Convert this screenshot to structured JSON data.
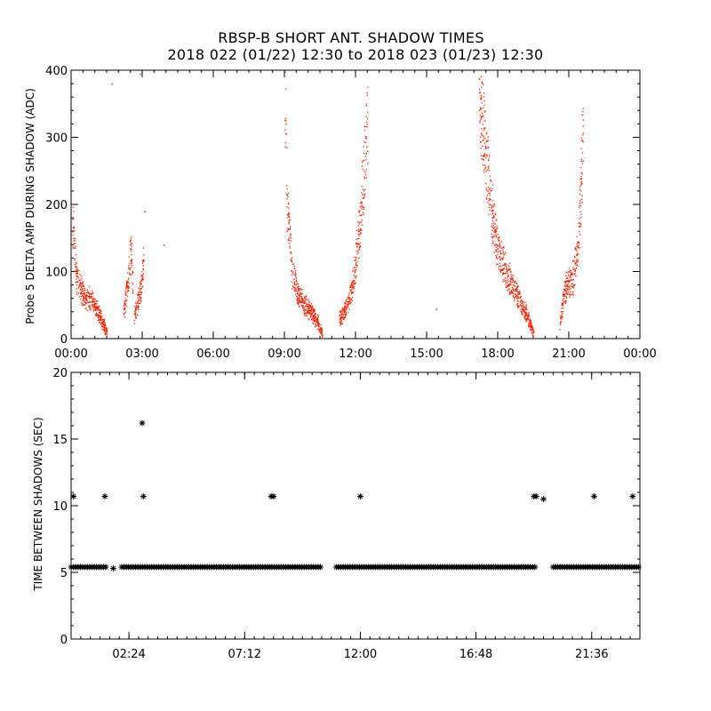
{
  "page": {
    "title_line1": "RBSP-B SHORT ANT. SHADOW TIMES",
    "title_line2": "2018 022 (01/22) 12:30 to 2018 023 (01/23) 12:30"
  },
  "colors": {
    "top_points": "#ff2200",
    "bottom_points": "#000000",
    "axes": "#000000"
  },
  "chart_data": [
    {
      "type": "scatter",
      "ylabel": "Probe 5 DELTA AMP DURING SHADOW (ADC)",
      "xlabel": "",
      "x_unit": "hours",
      "xlim": [
        0,
        24
      ],
      "ylim": [
        0,
        400
      ],
      "x_tick_values": [
        0,
        3,
        6,
        9,
        12,
        15,
        18,
        21,
        24
      ],
      "x_tick_labels": [
        "00:00",
        "03:00",
        "06:00",
        "09:00",
        "12:00",
        "15:00",
        "18:00",
        "21:00",
        "00:00"
      ],
      "y_ticks": [
        0,
        100,
        200,
        300,
        400
      ],
      "grid": false,
      "series": [
        {
          "color": "#ff2200",
          "segments": [
            {
              "x": [
                0.05,
                0.2,
                0.5,
                0.9,
                1.2,
                1.5
              ],
              "y": [
                185,
                95,
                65,
                55,
                35,
                8
              ]
            },
            {
              "x": [
                2.2,
                2.4,
                2.5,
                2.6
              ],
              "y": [
                40,
                90,
                140,
                75
              ]
            },
            {
              "x": [
                2.65,
                2.8,
                2.95,
                3.05
              ],
              "y": [
                35,
                55,
                80,
                120
              ]
            },
            {
              "x": [
                9.0,
                9.1,
                9.3,
                9.6,
                10.0,
                10.4,
                10.6
              ],
              "y": [
                380,
                200,
                100,
                62,
                45,
                25,
                5
              ]
            },
            {
              "x": [
                11.3,
                11.6,
                11.9,
                12.1,
                12.3,
                12.5
              ],
              "y": [
                30,
                45,
                85,
                150,
                230,
                330
              ]
            },
            {
              "x": [
                17.2,
                17.4,
                17.7,
                18.0,
                18.4,
                18.8,
                19.3,
                19.5
              ],
              "y": [
                385,
                300,
                200,
                130,
                95,
                65,
                30,
                5
              ]
            },
            {
              "x": [
                20.6,
                20.8,
                21.0,
                21.2,
                21.4,
                21.6
              ],
              "y": [
                20,
                70,
                85,
                95,
                150,
                320
              ]
            }
          ],
          "outliers": [
            {
              "x": 1.7,
              "y": 380
            },
            {
              "x": 2.9,
              "y": 395
            },
            {
              "x": 3.1,
              "y": 190
            },
            {
              "x": 3.9,
              "y": 140
            },
            {
              "x": 15.4,
              "y": 45
            }
          ]
        }
      ]
    },
    {
      "type": "scatter",
      "ylabel": "TIME BETWEEN SHADOWS (SEC)",
      "xlabel": "",
      "x_unit": "hours",
      "xlim": [
        0,
        23.6
      ],
      "ylim": [
        0,
        20
      ],
      "x_tick_values": [
        2.4,
        7.2,
        12.0,
        16.8,
        21.6
      ],
      "x_tick_labels": [
        "02:24",
        "07:12",
        "12:00",
        "16:48",
        "21:36"
      ],
      "y_ticks": [
        0,
        5,
        10,
        15,
        20
      ],
      "grid": false,
      "series": [
        {
          "color": "#000000",
          "baseline_value": 5.4,
          "baseline_ranges": [
            [
              0,
              1.5
            ],
            [
              2.1,
              10.4
            ],
            [
              11.0,
              19.3
            ],
            [
              20.0,
              23.6
            ]
          ],
          "points": [
            {
              "x": 0.1,
              "y": 10.7
            },
            {
              "x": 1.4,
              "y": 10.7
            },
            {
              "x": 1.75,
              "y": 5.3
            },
            {
              "x": 2.95,
              "y": 16.2
            },
            {
              "x": 3.0,
              "y": 10.7
            },
            {
              "x": 8.3,
              "y": 10.7
            },
            {
              "x": 8.4,
              "y": 10.7
            },
            {
              "x": 12.0,
              "y": 10.7
            },
            {
              "x": 19.2,
              "y": 10.7
            },
            {
              "x": 19.3,
              "y": 10.7
            },
            {
              "x": 19.6,
              "y": 10.5
            },
            {
              "x": 21.7,
              "y": 10.7
            },
            {
              "x": 23.3,
              "y": 10.7
            }
          ]
        }
      ]
    }
  ]
}
